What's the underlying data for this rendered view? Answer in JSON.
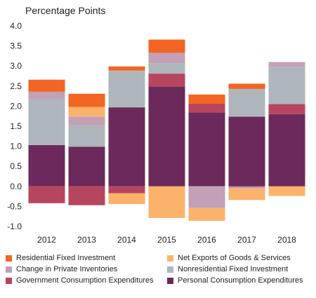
{
  "chart_data": {
    "type": "bar",
    "stacked": true,
    "title": "Percentage Points",
    "xlabel": "",
    "ylabel": "",
    "categories": [
      "2012",
      "2013",
      "2014",
      "2015",
      "2016",
      "2017",
      "2018"
    ],
    "ylim": [
      -1.0,
      4.0
    ],
    "yticks": [
      "4.0",
      "3.5",
      "3.0",
      "2.5",
      "2.0",
      "1.5",
      "1.0",
      "0.5",
      "0.0",
      "-0.5",
      "-1.0"
    ],
    "ytick_values": [
      4.0,
      3.5,
      3.0,
      2.5,
      2.0,
      1.5,
      1.0,
      0.5,
      0.0,
      -0.5,
      -1.0
    ],
    "grid": false,
    "legend_position": "bottom",
    "series": [
      {
        "name": "Personal Consumption Expenditures",
        "color": "#6B2A5B",
        "values": [
          1.03,
          0.99,
          1.97,
          2.49,
          1.84,
          1.74,
          1.8
        ]
      },
      {
        "name": "Government Consumption Expenditures",
        "color": "#B8455E",
        "values": [
          -0.42,
          -0.47,
          -0.17,
          0.32,
          0.22,
          -0.01,
          0.25
        ]
      },
      {
        "name": "Nonresidential Fixed Investment",
        "color": "#AEB6BC",
        "values": [
          1.16,
          0.53,
          0.9,
          0.26,
          -0.02,
          0.69,
          0.93
        ]
      },
      {
        "name": "Change in Private Inventories",
        "color": "#C3A0B6",
        "values": [
          0.17,
          0.22,
          0.02,
          0.26,
          -0.52,
          -0.04,
          0.12
        ]
      },
      {
        "name": "Net Exports of Goods & Services",
        "color": "#FBB36B",
        "values": [
          0.0,
          0.24,
          -0.27,
          -0.79,
          -0.32,
          -0.29,
          -0.24
        ]
      },
      {
        "name": "Residential Fixed Investment",
        "color": "#F26522",
        "values": [
          0.3,
          0.33,
          0.1,
          0.33,
          0.23,
          0.13,
          0.0
        ]
      }
    ],
    "legend_order": [
      "Residential Fixed Investment",
      "Net Exports of Goods & Services",
      "Change in Private Inventories",
      "Nonresidential Fixed Investment",
      "Government Consumption Expenditures",
      "Personal Consumption Expenditures"
    ]
  }
}
